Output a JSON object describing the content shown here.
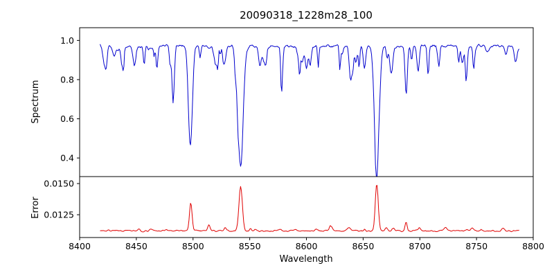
{
  "chart_data": {
    "type": "line",
    "title": "20090318_1228m28_100",
    "xlabel": "Wavelength",
    "xlim": [
      8400,
      8800
    ],
    "x_range": [
      8418,
      8788
    ],
    "x_ticks": [
      8400,
      8450,
      8500,
      8550,
      8600,
      8650,
      8700,
      8750,
      8800
    ],
    "x_tick_labels": [
      "8400",
      "8450",
      "8500",
      "8550",
      "8600",
      "8650",
      "8700",
      "8750",
      "8800"
    ],
    "legend": "none",
    "grid": false,
    "panels": [
      {
        "name": "spectrum",
        "ylabel": "Spectrum",
        "color": "#0000cd",
        "ylim": [
          0.305,
          1.065
        ],
        "y_ticks": [
          0.4,
          0.6,
          0.8,
          1.0
        ],
        "y_tick_labels": [
          "0.4",
          "0.6",
          "0.8",
          "1.0"
        ],
        "continuum": 0.97,
        "noise_amplitude": 0.013,
        "weak_line_count": 70,
        "absorption_lines": [
          {
            "center": 8498,
            "depth": 0.46,
            "sigma": 1.6
          },
          {
            "center": 8542,
            "depth": 0.615,
            "sigma": 2.2
          },
          {
            "center": 8662,
            "depth": 0.615,
            "sigma": 2.0
          },
          {
            "center": 8688,
            "depth": 0.25,
            "sigma": 1.0
          }
        ]
      },
      {
        "name": "error",
        "ylabel": "Error",
        "color": "#e00000",
        "ylim": [
          0.01067,
          0.01556
        ],
        "y_ticks": [
          0.0125,
          0.015
        ],
        "y_tick_labels": [
          "0.0125",
          "0.0150"
        ],
        "baseline": 0.0112,
        "noise_amplitude": 9e-05,
        "peaks": [
          {
            "center": 8498,
            "height": 0.0022,
            "sigma": 1.2
          },
          {
            "center": 8514,
            "height": 0.0005,
            "sigma": 1.0
          },
          {
            "center": 8542,
            "height": 0.0036,
            "sigma": 1.5
          },
          {
            "center": 8662,
            "height": 0.0038,
            "sigma": 1.3
          },
          {
            "center": 8688,
            "height": 0.0007,
            "sigma": 0.9
          }
        ]
      }
    ]
  }
}
